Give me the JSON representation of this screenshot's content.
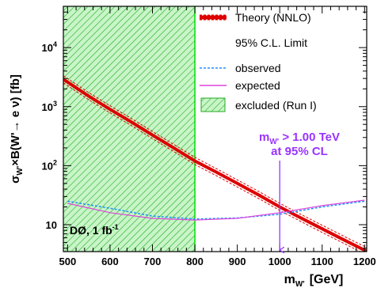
{
  "chart_data": {
    "type": "line",
    "xlabel_main": "m",
    "xlabel_sub": "W'",
    "xlabel_unit": "[GeV]",
    "ylabel": "σ W'×B(W'→ e ν) [fb]",
    "xlim": [
      490,
      1205
    ],
    "ylim": [
      3.5,
      50000
    ],
    "yscale": "log",
    "xticks": [
      500,
      600,
      700,
      800,
      900,
      1000,
      1100,
      1200
    ],
    "xtick_labels": [
      "500",
      "600",
      "700",
      "800",
      "900",
      "1000",
      "1100",
      "1200"
    ],
    "yticks": [
      10,
      100,
      1000,
      10000
    ],
    "ytick_bases": [
      "10",
      "10",
      "10",
      "10"
    ],
    "ytick_exps": [
      "",
      "2",
      "3",
      "4"
    ],
    "legend": {
      "theory": "Theory (NNLO)",
      "limit_header": "95% C.L. Limit",
      "observed": "observed",
      "expected": "expected",
      "excluded": "excluded (Run I)"
    },
    "annotation": {
      "line1_main": "m",
      "line1_sub": "W'",
      "line1_rest": " > 1.00 TeV",
      "line2": "at 95% CL",
      "arrow_x": 1000
    },
    "experiment_label": "DØ, 1 fb",
    "experiment_label_exp": "-1",
    "excluded_region": {
      "x_max": 800
    },
    "series": [
      {
        "name": "Theory (NNLO)",
        "color": "#dd0000",
        "x": [
          490,
          500,
          550,
          600,
          650,
          700,
          750,
          800,
          850,
          900,
          950,
          1000,
          1050,
          1100,
          1150,
          1200,
          1205
        ],
        "y": [
          2900,
          2600,
          1500,
          900,
          550,
          330,
          200,
          120,
          78,
          50,
          32,
          20,
          13,
          8.5,
          5.6,
          3.7,
          3.5
        ]
      },
      {
        "name": "observed",
        "color": "#1e90ff",
        "x": [
          500,
          600,
          700,
          800,
          900,
          1000,
          1100,
          1200
        ],
        "y": [
          25,
          19,
          14,
          12.5,
          13,
          15,
          20,
          25
        ]
      },
      {
        "name": "expected",
        "color": "#dd44dd",
        "x": [
          500,
          600,
          700,
          800,
          900,
          1000,
          1100,
          1200
        ],
        "y": [
          23,
          16,
          12.8,
          12,
          12.8,
          16,
          21,
          26
        ]
      }
    ],
    "colors": {
      "theory": "#dd0000",
      "observed": "#1e90ff",
      "expected": "#dd44dd",
      "excluded_fill": "#c8f5c8",
      "excluded_hatch": "#22aa22",
      "excluded_edge": "#00dd00",
      "annotation": "#9933ff"
    }
  }
}
